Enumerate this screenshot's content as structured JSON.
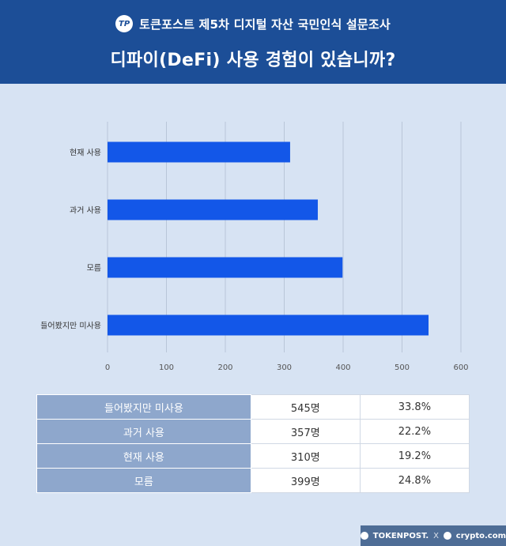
{
  "header": {
    "logo_text": "TP",
    "survey_title": "토큰포스트 제5차 디지털 자산 국민인식 설문조사",
    "question": "디파이(DeFi) 사용 경험이 있습니까?"
  },
  "chart_data": {
    "type": "bar",
    "orientation": "horizontal",
    "categories": [
      "현재 사용",
      "과거 사용",
      "모름",
      "들어봤지만 미사용"
    ],
    "values": [
      310,
      357,
      399,
      545
    ],
    "xlim": [
      0,
      600
    ],
    "xticks": [
      "0",
      "100",
      "200",
      "300",
      "400",
      "500",
      "600"
    ],
    "grid": true,
    "bar_color": "#1357e8"
  },
  "table": {
    "rows": [
      {
        "label": "들어봤지만 미사용",
        "count": "545명",
        "percent": "33.8%"
      },
      {
        "label": "과거 사용",
        "count": "357명",
        "percent": "22.2%"
      },
      {
        "label": "현재 사용",
        "count": "310명",
        "percent": "19.2%"
      },
      {
        "label": "모름",
        "count": "399명",
        "percent": "24.8%"
      }
    ]
  },
  "footer": {
    "brand1": "TOKENPOST.",
    "separator": "X",
    "brand2": "crypto.com"
  }
}
